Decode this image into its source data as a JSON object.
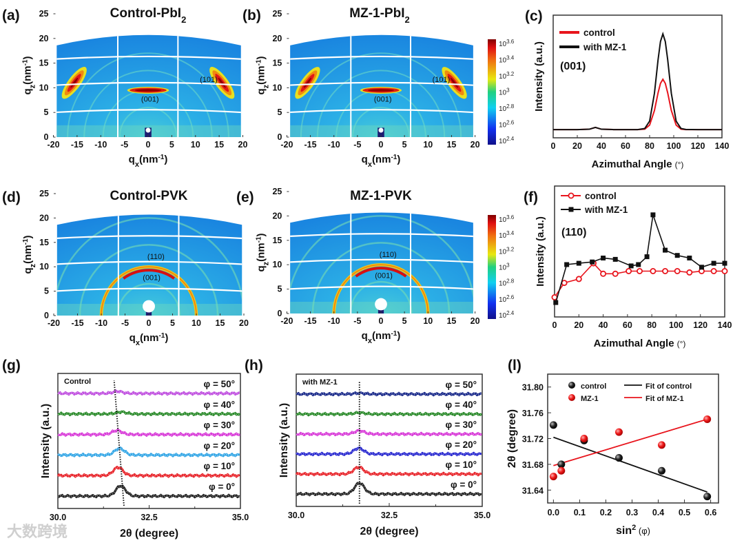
{
  "figure": {
    "watermark": "大数跨境"
  },
  "chart_data": [
    {
      "panel": "(a)",
      "type": "heatmap",
      "title": "Control-PbI",
      "title_sub": "2",
      "xlabel": {
        "q": "q",
        "sub": "x",
        "unit": "(nm",
        "sup": "-1",
        "close": ")"
      },
      "ylabel": {
        "q": "q",
        "sub": "z",
        "unit": "(nm",
        "sup": "-1",
        "close": ")"
      },
      "xticks": [
        -20,
        -15,
        -10,
        -5,
        0,
        5,
        10,
        15,
        20
      ],
      "yticks": [
        0,
        5,
        10,
        15,
        20,
        25
      ],
      "xlim": [
        -20,
        20
      ],
      "ylim": [
        0,
        25
      ],
      "sample": "PbI2",
      "annotations": [
        "(001)",
        "(101)"
      ]
    },
    {
      "panel": "(b)",
      "type": "heatmap",
      "title": "MZ-1-PbI",
      "title_sub": "2",
      "xlabel": {
        "q": "q",
        "sub": "x",
        "unit": "(nm",
        "sup": "-1",
        "close": ")"
      },
      "ylabel": {
        "q": "q",
        "sub": "z",
        "unit": "(nm",
        "sup": "-1",
        "close": ")"
      },
      "xticks": [
        -20,
        -15,
        -10,
        -5,
        0,
        5,
        10,
        15,
        20
      ],
      "yticks": [
        0,
        5,
        10,
        15,
        20,
        25
      ],
      "xlim": [
        -20,
        20
      ],
      "ylim": [
        0,
        25
      ],
      "sample": "PbI2",
      "annotations": [
        "(001)",
        "(101)"
      ],
      "colorbar": {
        "base": "10",
        "exponents": [
          "3.6",
          "3.4",
          "3.2",
          "3",
          "2.8",
          "2.6",
          "2.4"
        ]
      }
    },
    {
      "panel": "(c)",
      "type": "line",
      "annotation": "(001)",
      "xlabel": "Azimuthal Angle",
      "xunit": "(°)",
      "ylabel": "Intensity (a.u.)",
      "xlim": [
        0,
        140
      ],
      "xticks": [
        0,
        20,
        40,
        60,
        80,
        100,
        120,
        140
      ],
      "series": [
        {
          "name": "control",
          "color": "#e8141c",
          "x": [
            0,
            10,
            20,
            30,
            35,
            40,
            50,
            60,
            70,
            76,
            80,
            84,
            87,
            89,
            91,
            93,
            95,
            98,
            102,
            106,
            110,
            120,
            130,
            140
          ],
          "y": [
            0.067,
            0.067,
            0.067,
            0.07,
            0.085,
            0.07,
            0.067,
            0.067,
            0.067,
            0.071,
            0.104,
            0.223,
            0.366,
            0.444,
            0.477,
            0.444,
            0.366,
            0.223,
            0.104,
            0.071,
            0.067,
            0.067,
            0.067,
            0.067
          ]
        },
        {
          "name": "with MZ-1",
          "color": "#111111",
          "x": [
            0,
            10,
            20,
            30,
            35,
            40,
            50,
            60,
            70,
            76,
            80,
            84,
            87,
            89,
            91,
            93,
            95,
            98,
            102,
            106,
            110,
            120,
            130,
            140
          ],
          "y": [
            0.067,
            0.067,
            0.067,
            0.07,
            0.085,
            0.07,
            0.067,
            0.067,
            0.067,
            0.076,
            0.136,
            0.363,
            0.636,
            0.785,
            0.847,
            0.785,
            0.636,
            0.363,
            0.136,
            0.076,
            0.068,
            0.067,
            0.067,
            0.067
          ]
        }
      ]
    },
    {
      "panel": "(d)",
      "type": "heatmap",
      "title": "Control-PVK",
      "title_sub": "",
      "xlabel": {
        "q": "q",
        "sub": "x",
        "unit": "(nm",
        "sup": "-1",
        "close": ")"
      },
      "ylabel": {
        "q": "q",
        "sub": "z",
        "unit": "(nm",
        "sup": "-1",
        "close": ")"
      },
      "xticks": [
        -20,
        -15,
        -10,
        -5,
        0,
        5,
        10,
        15,
        20
      ],
      "yticks": [
        0,
        5,
        10,
        15,
        20,
        25
      ],
      "xlim": [
        -20,
        20
      ],
      "ylim": [
        0,
        25
      ],
      "sample": "PVK",
      "annotations": [
        "(110)",
        "(001)"
      ]
    },
    {
      "panel": "(e)",
      "type": "heatmap",
      "title": "MZ-1-PVK",
      "title_sub": "",
      "xlabel": {
        "q": "q",
        "sub": "x",
        "unit": "(nm",
        "sup": "-1",
        "close": ")"
      },
      "ylabel": {
        "q": "q",
        "sub": "z",
        "unit": "(nm",
        "sup": "-1",
        "close": ")"
      },
      "xticks": [
        -20,
        -15,
        -10,
        -5,
        0,
        5,
        10,
        15,
        20
      ],
      "yticks": [
        0,
        5,
        10,
        15,
        20,
        25
      ],
      "xlim": [
        -20,
        20
      ],
      "ylim": [
        0,
        25
      ],
      "sample": "PVK",
      "annotations": [
        "(110)",
        "(001)"
      ],
      "colorbar": {
        "base": "10",
        "exponents": [
          "3.6",
          "3.4",
          "3.2",
          "3",
          "2.8",
          "2.6",
          "2.4"
        ]
      }
    },
    {
      "panel": "(f)",
      "type": "line",
      "annotation": "(110)",
      "xlabel": "Azimuthal Angle",
      "xunit": "(°)",
      "ylabel": "Intensity (a.u.)",
      "xlim": [
        0,
        140
      ],
      "xticks": [
        0,
        20,
        40,
        60,
        80,
        100,
        120,
        140
      ],
      "series": [
        {
          "name": "control",
          "color": "#e8141c",
          "marker": "circle",
          "x": [
            0,
            8,
            20,
            32,
            40,
            50,
            61,
            70,
            81,
            91,
            101,
            111,
            121,
            131,
            140
          ],
          "y": [
            0.15,
            0.26,
            0.29,
            0.41,
            0.33,
            0.33,
            0.35,
            0.35,
            0.35,
            0.35,
            0.35,
            0.34,
            0.35,
            0.35,
            0.35
          ]
        },
        {
          "name": "with MZ-1",
          "color": "#111111",
          "marker": "square",
          "x": [
            1,
            10,
            20,
            31,
            40,
            50,
            63,
            69,
            76,
            81,
            91,
            101,
            111,
            121,
            131,
            140
          ],
          "y": [
            0.11,
            0.4,
            0.41,
            0.42,
            0.45,
            0.44,
            0.39,
            0.4,
            0.46,
            0.78,
            0.51,
            0.47,
            0.45,
            0.38,
            0.41,
            0.41
          ]
        }
      ]
    },
    {
      "panel": "(g)",
      "type": "line",
      "inset_label": "Control",
      "xlabel": "2θ (degree)",
      "ylabel": "Intensity (a.u.)",
      "xlim": [
        30,
        35
      ],
      "xticks": [
        "30.0",
        "32.5",
        "35.0"
      ],
      "guide_line": {
        "x_bottom": 31.81,
        "x_top": 31.54
      },
      "series": [
        {
          "name": "φ = 0°",
          "color": "#222222",
          "peak": 31.72,
          "amplitude": 0.5
        },
        {
          "name": "φ = 10°",
          "color": "#e8242a",
          "peak": 31.65,
          "amplitude": 0.4
        },
        {
          "name": "φ = 20°",
          "color": "#33a6e6",
          "peak": 31.69,
          "amplitude": 0.33
        },
        {
          "name": "φ = 30°",
          "color": "#d83ad8",
          "peak": 31.62,
          "amplitude": 0.2
        },
        {
          "name": "φ = 40°",
          "color": "#2a8a2a",
          "peak": 31.73,
          "amplitude": 0.1
        },
        {
          "name": "φ = 50°",
          "color": "#c050e0",
          "peak": 31.64,
          "amplitude": 0.1
        }
      ]
    },
    {
      "panel": "(h)",
      "type": "line",
      "inset_label": "with MZ-1",
      "xlabel": "2θ (degree)",
      "ylabel": "Intensity (a.u.)",
      "xlim": [
        30,
        35
      ],
      "xticks": [
        "30.0",
        "32.5",
        "35.0"
      ],
      "guide_line": {
        "x_bottom": 31.7,
        "x_top": 31.7
      },
      "series": [
        {
          "name": "φ = 0°",
          "color": "#222222",
          "peak": 31.7,
          "amplitude": 0.55
        },
        {
          "name": "φ = 10°",
          "color": "#e8242a",
          "peak": 31.68,
          "amplitude": 0.35
        },
        {
          "name": "φ = 20°",
          "color": "#2a2ad0",
          "peak": 31.68,
          "amplitude": 0.3
        },
        {
          "name": "φ = 30°",
          "color": "#d83ad8",
          "peak": 31.7,
          "amplitude": 0.17
        },
        {
          "name": "φ = 40°",
          "color": "#2a8a2a",
          "peak": 31.7,
          "amplitude": 0.07
        },
        {
          "name": "φ = 50°",
          "color": "#1a2a8a",
          "peak": 31.7,
          "amplitude": 0.05
        }
      ]
    },
    {
      "panel": "(l)",
      "type": "scatter",
      "xlabel": {
        "base": "sin",
        "sup": "2",
        "rest": " (φ)"
      },
      "ylabel": "2θ (degree)",
      "xlim": [
        -0.022,
        0.63
      ],
      "ylim": [
        31.62,
        31.82
      ],
      "xticks": [
        "0.0",
        "0.1",
        "0.2",
        "0.3",
        "0.4",
        "0.5",
        "0.6"
      ],
      "yticks": [
        "31.64",
        "31.68",
        "31.72",
        "31.76",
        "31.80"
      ],
      "series": [
        {
          "name": "control",
          "color": "#111111",
          "x": [
            0,
            0.03,
            0.117,
            0.25,
            0.413,
            0.587
          ],
          "y": [
            31.741,
            31.68,
            31.717,
            31.69,
            31.67,
            31.63
          ]
        },
        {
          "name": "MZ-1",
          "color": "#e8141c",
          "x": [
            0,
            0.03,
            0.117,
            0.25,
            0.413,
            0.587
          ],
          "y": [
            31.661,
            31.67,
            31.72,
            31.73,
            31.71,
            31.75
          ]
        }
      ],
      "fits": [
        {
          "name": "Fit of control",
          "color": "#111111",
          "x": [
            0,
            0.587
          ],
          "y": [
            31.722,
            31.637
          ]
        },
        {
          "name": "Fit of MZ-1",
          "color": "#e8141c",
          "x": [
            0,
            0.587
          ],
          "y": [
            31.678,
            31.75
          ]
        }
      ]
    }
  ]
}
